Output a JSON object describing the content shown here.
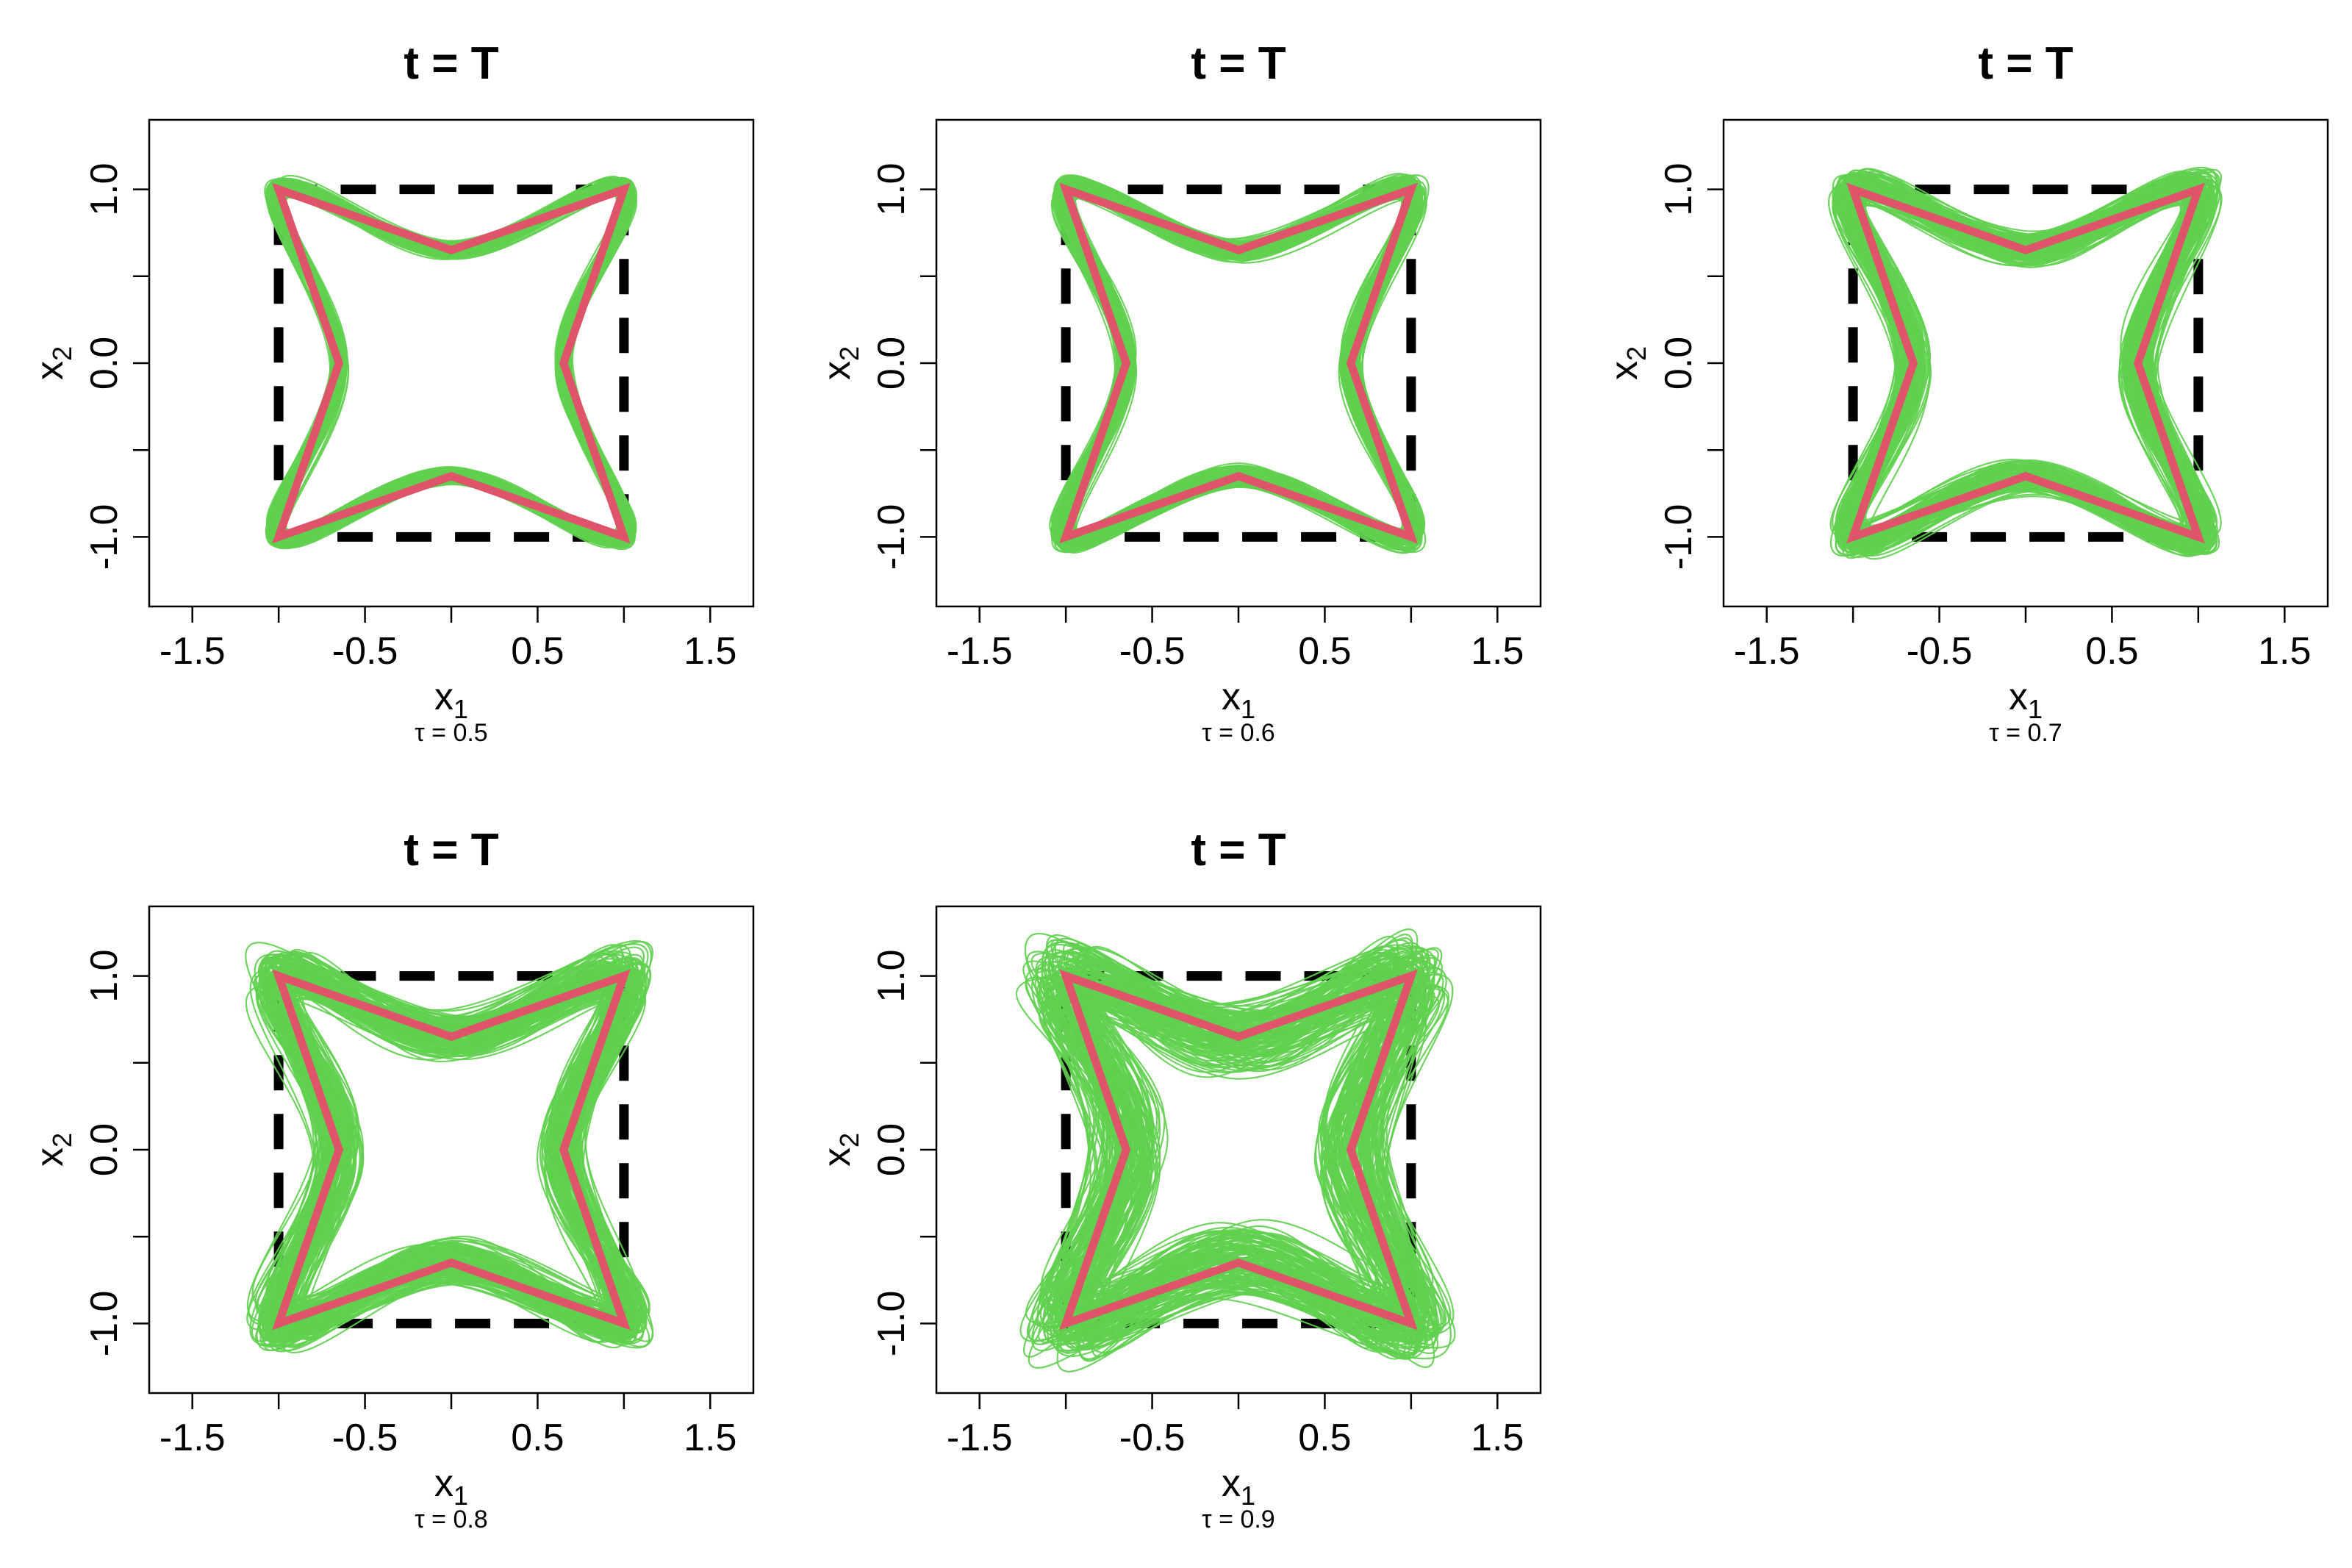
{
  "colors": {
    "samples": "#61D04F",
    "truth": "#DF536B",
    "reference": "#000000"
  },
  "chart_data": [
    {
      "type": "line",
      "title": "t = T",
      "xlabel": "x1",
      "ylabel": "x2",
      "subtitle": "τ = 0.5",
      "xlim": [
        -1.75,
        1.75
      ],
      "ylim": [
        -1.4,
        1.4
      ],
      "xticks": [
        "-1.5",
        "-0.5",
        "0.5",
        "1.5"
      ],
      "yticks": [
        "-1.0",
        "0.0",
        "1.0"
      ],
      "star_inner": 0.65,
      "spread": 0.04,
      "reference_square": [
        [
          -1,
          -1
        ],
        [
          1,
          -1
        ],
        [
          1,
          1
        ],
        [
          -1,
          1
        ]
      ],
      "truth_star": [
        [
          -1,
          1
        ],
        [
          0,
          0.65
        ],
        [
          1,
          1
        ],
        [
          0.65,
          0
        ],
        [
          1,
          -1
        ],
        [
          0,
          -0.65
        ],
        [
          -1,
          -1
        ],
        [
          -0.65,
          0
        ]
      ]
    },
    {
      "type": "line",
      "title": "t = T",
      "xlabel": "x1",
      "ylabel": "x2",
      "subtitle": "τ = 0.6",
      "xlim": [
        -1.75,
        1.75
      ],
      "ylim": [
        -1.4,
        1.4
      ],
      "xticks": [
        "-1.5",
        "-0.5",
        "0.5",
        "1.5"
      ],
      "yticks": [
        "-1.0",
        "0.0",
        "1.0"
      ],
      "star_inner": 0.65,
      "spread": 0.05,
      "reference_square": [
        [
          -1,
          -1
        ],
        [
          1,
          -1
        ],
        [
          1,
          1
        ],
        [
          -1,
          1
        ]
      ],
      "truth_star": [
        [
          -1,
          1
        ],
        [
          0,
          0.65
        ],
        [
          1,
          1
        ],
        [
          0.65,
          0
        ],
        [
          1,
          -1
        ],
        [
          0,
          -0.65
        ],
        [
          -1,
          -1
        ],
        [
          -0.65,
          0
        ]
      ]
    },
    {
      "type": "line",
      "title": "t = T",
      "xlabel": "x1",
      "ylabel": "x2",
      "subtitle": "τ = 0.7",
      "xlim": [
        -1.75,
        1.75
      ],
      "ylim": [
        -1.4,
        1.4
      ],
      "xticks": [
        "-1.5",
        "-0.5",
        "0.5",
        "1.5"
      ],
      "yticks": [
        "-1.0",
        "0.0",
        "1.0"
      ],
      "star_inner": 0.65,
      "spread": 0.08,
      "reference_square": [
        [
          -1,
          -1
        ],
        [
          1,
          -1
        ],
        [
          1,
          1
        ],
        [
          -1,
          1
        ]
      ],
      "truth_star": [
        [
          -1,
          1
        ],
        [
          0,
          0.65
        ],
        [
          1,
          1
        ],
        [
          0.65,
          0
        ],
        [
          1,
          -1
        ],
        [
          0,
          -0.65
        ],
        [
          -1,
          -1
        ],
        [
          -0.65,
          0
        ]
      ]
    },
    {
      "type": "line",
      "title": "t = T",
      "xlabel": "x1",
      "ylabel": "x2",
      "subtitle": "τ = 0.8",
      "xlim": [
        -1.75,
        1.75
      ],
      "ylim": [
        -1.4,
        1.4
      ],
      "xticks": [
        "-1.5",
        "-0.5",
        "0.5",
        "1.5"
      ],
      "yticks": [
        "-1.0",
        "0.0",
        "1.0"
      ],
      "star_inner": 0.65,
      "spread": 0.11,
      "reference_square": [
        [
          -1,
          -1
        ],
        [
          1,
          -1
        ],
        [
          1,
          1
        ],
        [
          -1,
          1
        ]
      ],
      "truth_star": [
        [
          -1,
          1
        ],
        [
          0,
          0.65
        ],
        [
          1,
          1
        ],
        [
          0.65,
          0
        ],
        [
          1,
          -1
        ],
        [
          0,
          -0.65
        ],
        [
          -1,
          -1
        ],
        [
          -0.65,
          0
        ]
      ]
    },
    {
      "type": "line",
      "title": "t = T",
      "xlabel": "x1",
      "ylabel": "x2",
      "subtitle": "τ = 0.9",
      "xlim": [
        -1.75,
        1.75
      ],
      "ylim": [
        -1.4,
        1.4
      ],
      "xticks": [
        "-1.5",
        "-0.5",
        "0.5",
        "1.5"
      ],
      "yticks": [
        "-1.0",
        "0.0",
        "1.0"
      ],
      "star_inner": 0.65,
      "spread": 0.17,
      "reference_square": [
        [
          -1,
          -1
        ],
        [
          1,
          -1
        ],
        [
          1,
          1
        ],
        [
          -1,
          1
        ]
      ],
      "truth_star": [
        [
          -1,
          1
        ],
        [
          0,
          0.65
        ],
        [
          1,
          1
        ],
        [
          0.65,
          0
        ],
        [
          1,
          -1
        ],
        [
          0,
          -0.65
        ],
        [
          -1,
          -1
        ],
        [
          -0.65,
          0
        ]
      ]
    }
  ]
}
